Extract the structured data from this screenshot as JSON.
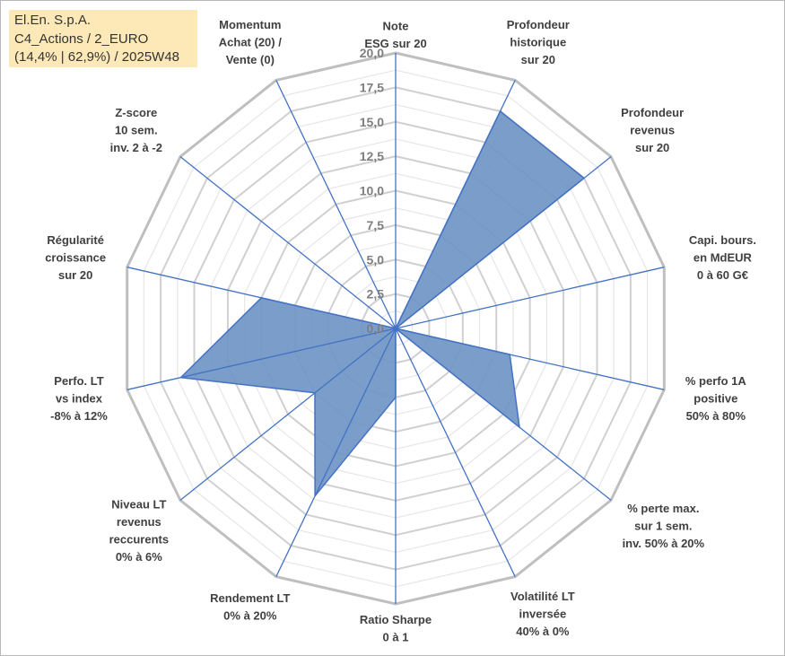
{
  "chart_data": {
    "type": "radar",
    "title_lines": [
      "El.En. S.p.A.",
      "C4_Actions / 2_EURO",
      "(14,4% | 62,9%) / 2025W48"
    ],
    "rlim": [
      0,
      20
    ],
    "ticks": [
      "0,0",
      "2,5",
      "5,0",
      "7,5",
      "10,0",
      "12,5",
      "15,0",
      "17,5",
      "20,0"
    ],
    "axes": [
      {
        "lines": [
          "Note",
          "ESG sur 20"
        ],
        "value": 0
      },
      {
        "lines": [
          "Profondeur",
          "historique",
          "sur 20"
        ],
        "value": 17.5
      },
      {
        "lines": [
          "Profondeur",
          "revenus",
          "sur 20"
        ],
        "value": 17.5
      },
      {
        "lines": [
          "Capi. bours.",
          "en MdEUR",
          "0 à 60 G€"
        ],
        "value": 0
      },
      {
        "lines": [
          "% perfo 1A",
          "positive",
          "50% à 80%"
        ],
        "value": 8.5
      },
      {
        "lines": [
          "% perte max.",
          "sur 1 sem.",
          "inv. 50% à 20%"
        ],
        "value": 11.5
      },
      {
        "lines": [
          "Volatilité LT",
          "inversée",
          "40% à 0%"
        ],
        "value": 0
      },
      {
        "lines": [
          "Ratio Sharpe",
          "0 à 1"
        ],
        "value": 5.0
      },
      {
        "lines": [
          "Rendement LT",
          "0% à 20%"
        ],
        "value": 13.5
      },
      {
        "lines": [
          "Niveau LT",
          "revenus",
          "reccurents",
          "0% à 6%"
        ],
        "value": 7.5
      },
      {
        "lines": [
          "Perfo. LT",
          "vs index",
          "-8% à 12%"
        ],
        "value": 16.0
      },
      {
        "lines": [
          "Régularité",
          "croissance",
          "sur 20"
        ],
        "value": 10.0
      },
      {
        "lines": [
          "Z-score",
          "10 sem.",
          "inv. 2 à -2"
        ],
        "value": 0
      },
      {
        "lines": [
          "Momentum",
          "Achat (20) /",
          "Vente (0)"
        ],
        "value": 0
      }
    ],
    "series": [
      {
        "color": "#6f95c4",
        "edge": "#4472c4"
      }
    ],
    "grid": true,
    "legend": "top-left"
  }
}
